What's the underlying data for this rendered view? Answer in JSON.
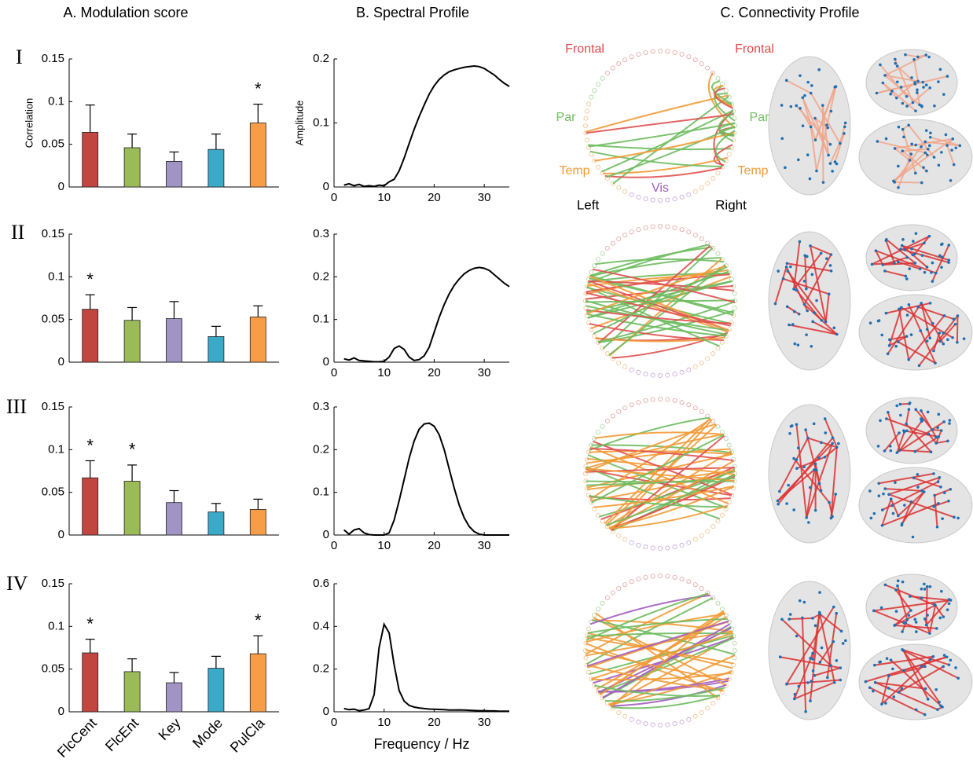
{
  "column_titles": {
    "a": "A. Modulation score",
    "b": "B. Spectral Profile",
    "c": "C. Connectivity Profile"
  },
  "row_labels": [
    "I",
    "II",
    "III",
    "IV"
  ],
  "connectivity_labels": {
    "frontal_left": "Frontal",
    "frontal_right": "Frontal",
    "par_left": "Par",
    "par_right": "Par",
    "temp_left": "Temp",
    "temp_right": "Temp",
    "vis": "Vis",
    "left": "Left",
    "right": "Right"
  },
  "chart_data": [
    {
      "type": "bar",
      "ylabel": "Correlation",
      "values": [
        0.064,
        0.046,
        0.03,
        0.044,
        0.075
      ],
      "errors": [
        0.032,
        0.016,
        0.011,
        0.018,
        0.022
      ],
      "colors": [
        "#c0463f",
        "#9bbb59",
        "#a193c4",
        "#3ba9c8",
        "#f79d4a"
      ],
      "ylim": [
        0,
        0.15
      ],
      "yticks": [
        0,
        0.05,
        0.1,
        0.15
      ],
      "marker": "*",
      "significant": [
        false,
        false,
        false,
        false,
        true
      ]
    },
    {
      "type": "bar",
      "values": [
        0.062,
        0.049,
        0.051,
        0.03,
        0.053
      ],
      "errors": [
        0.017,
        0.015,
        0.02,
        0.012,
        0.013
      ],
      "colors": [
        "#c0463f",
        "#9bbb59",
        "#a193c4",
        "#3ba9c8",
        "#f79d4a"
      ],
      "ylim": [
        0,
        0.15
      ],
      "yticks": [
        0,
        0.05,
        0.1,
        0.15
      ],
      "marker": "*",
      "significant": [
        true,
        false,
        false,
        false,
        false
      ]
    },
    {
      "type": "bar",
      "values": [
        0.067,
        0.063,
        0.038,
        0.027,
        0.03
      ],
      "errors": [
        0.02,
        0.019,
        0.014,
        0.01,
        0.012
      ],
      "colors": [
        "#c0463f",
        "#9bbb59",
        "#a193c4",
        "#3ba9c8",
        "#f79d4a"
      ],
      "ylim": [
        0,
        0.15
      ],
      "yticks": [
        0,
        0.05,
        0.1,
        0.15
      ],
      "marker": "*",
      "significant": [
        true,
        true,
        false,
        false,
        false
      ]
    },
    {
      "type": "bar",
      "categories": [
        "FlcCent",
        "FlcEnt",
        "Key",
        "Mode",
        "PulCla"
      ],
      "values": [
        0.069,
        0.047,
        0.034,
        0.051,
        0.068
      ],
      "errors": [
        0.016,
        0.015,
        0.012,
        0.014,
        0.021
      ],
      "colors": [
        "#c0463f",
        "#9bbb59",
        "#a193c4",
        "#3ba9c8",
        "#f79d4a"
      ],
      "ylim": [
        0,
        0.15
      ],
      "yticks": [
        0,
        0.05,
        0.1,
        0.15
      ],
      "marker": "*",
      "significant": [
        true,
        false,
        false,
        false,
        true
      ]
    },
    {
      "type": "line",
      "ylabel": "Amplitude",
      "color": "#000000",
      "x": [
        2,
        3,
        4,
        5,
        6,
        7,
        8,
        9,
        10,
        11,
        12,
        13,
        14,
        15,
        16,
        17,
        18,
        19,
        20,
        21,
        22,
        23,
        24,
        25,
        26,
        27,
        28,
        29,
        30,
        31,
        32,
        33,
        34,
        35
      ],
      "values": [
        0.003,
        0.005,
        0.002,
        0.004,
        0.001,
        0.002,
        0.001,
        0.003,
        0.002,
        0.008,
        0.012,
        0.025,
        0.045,
        0.068,
        0.09,
        0.11,
        0.128,
        0.145,
        0.158,
        0.168,
        0.175,
        0.18,
        0.183,
        0.185,
        0.187,
        0.188,
        0.189,
        0.188,
        0.185,
        0.18,
        0.175,
        0.168,
        0.162,
        0.157
      ],
      "xlim": [
        0,
        35
      ],
      "xticks": [
        0,
        10,
        20,
        30
      ],
      "ylim": [
        0,
        0.2
      ],
      "yticks": [
        0,
        0.1,
        0.2
      ]
    },
    {
      "type": "line",
      "color": "#000000",
      "x": [
        2,
        3,
        4,
        5,
        6,
        7,
        8,
        9,
        10,
        11,
        12,
        13,
        14,
        15,
        16,
        17,
        18,
        19,
        20,
        21,
        22,
        23,
        24,
        25,
        26,
        27,
        28,
        29,
        30,
        31,
        32,
        33,
        34,
        35
      ],
      "values": [
        0.008,
        0.005,
        0.01,
        0.004,
        0.003,
        0.002,
        0.001,
        0.001,
        0.002,
        0.012,
        0.032,
        0.038,
        0.03,
        0.012,
        0.004,
        0.006,
        0.015,
        0.035,
        0.07,
        0.105,
        0.135,
        0.16,
        0.18,
        0.195,
        0.207,
        0.215,
        0.22,
        0.222,
        0.22,
        0.215,
        0.205,
        0.195,
        0.185,
        0.177
      ],
      "xlim": [
        0,
        35
      ],
      "xticks": [
        0,
        10,
        20,
        30
      ],
      "ylim": [
        0,
        0.3
      ],
      "yticks": [
        0,
        0.1,
        0.2,
        0.3
      ]
    },
    {
      "type": "line",
      "color": "#000000",
      "x": [
        2,
        3,
        4,
        5,
        6,
        7,
        8,
        9,
        10,
        11,
        12,
        13,
        14,
        15,
        16,
        17,
        18,
        19,
        20,
        21,
        22,
        23,
        24,
        25,
        26,
        27,
        28,
        29,
        30,
        31,
        32,
        33,
        34,
        35
      ],
      "values": [
        0.012,
        0.002,
        0.012,
        0.015,
        0.005,
        0.001,
        0,
        0,
        0,
        0.005,
        0.035,
        0.08,
        0.13,
        0.18,
        0.22,
        0.248,
        0.26,
        0.262,
        0.255,
        0.235,
        0.2,
        0.155,
        0.11,
        0.07,
        0.04,
        0.02,
        0.008,
        0.002,
        0,
        0,
        0,
        0,
        0,
        0
      ],
      "xlim": [
        0,
        35
      ],
      "xticks": [
        0,
        10,
        20,
        30
      ],
      "ylim": [
        0,
        0.3
      ],
      "yticks": [
        0,
        0.1,
        0.2,
        0.3
      ]
    },
    {
      "type": "line",
      "xlabel": "Frequency / Hz",
      "color": "#000000",
      "x": [
        2,
        3,
        4,
        5,
        6,
        7,
        8,
        9,
        10,
        11,
        12,
        13,
        14,
        15,
        16,
        17,
        18,
        19,
        20,
        21,
        22,
        23,
        24,
        25,
        26,
        27,
        28,
        29,
        30,
        31,
        32,
        33,
        34,
        35
      ],
      "values": [
        0.015,
        0.01,
        0.012,
        0.005,
        0.008,
        0.015,
        0.08,
        0.3,
        0.41,
        0.37,
        0.22,
        0.1,
        0.05,
        0.03,
        0.022,
        0.018,
        0.015,
        0.013,
        0.012,
        0.011,
        0.01,
        0.008,
        0.008,
        0.009,
        0.008,
        0.007,
        0.006,
        0.005,
        0.005,
        0.004,
        0.004,
        0.003,
        0.003,
        0.003
      ],
      "xlim": [
        0,
        35
      ],
      "xticks": [
        0,
        10,
        20,
        30
      ],
      "ylim": [
        0,
        0.6
      ],
      "yticks": [
        0,
        0.2,
        0.4,
        0.6
      ]
    }
  ]
}
